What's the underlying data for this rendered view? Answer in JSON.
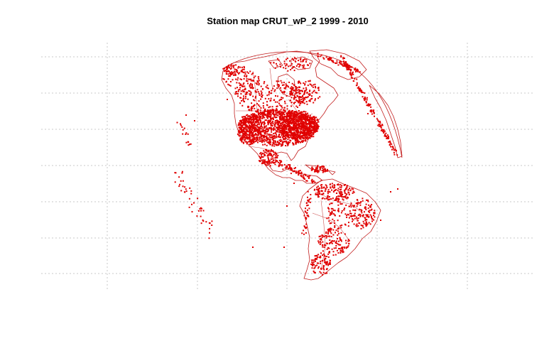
{
  "title": "Station map CRUT_wP_2 1999 - 2010",
  "colors": {
    "station": "#e00000",
    "coastline": "#c21c1c",
    "border": "#cc5252",
    "grid": "#c8c8c8",
    "background": "#ffffff"
  },
  "projection": "orthographic",
  "grid": true
}
